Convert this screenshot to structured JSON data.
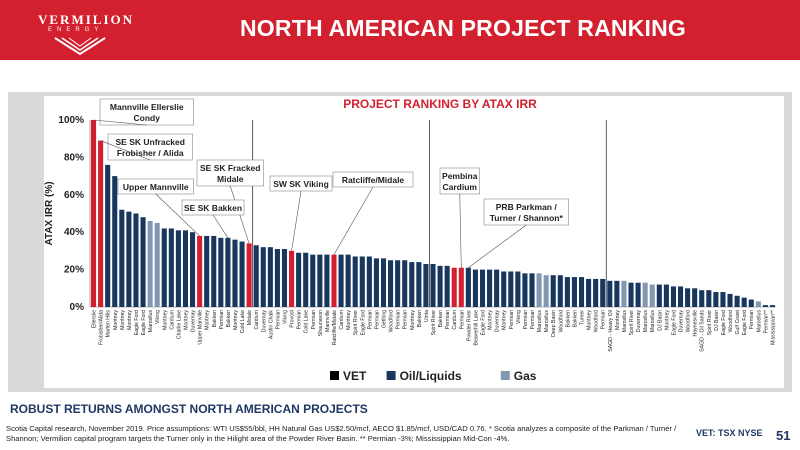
{
  "header": {
    "logo_line1": "VERMILION",
    "logo_line2": "ENERGY",
    "title": "NORTH AMERICAN PROJECT RANKING"
  },
  "colors": {
    "banner": "#d3202e",
    "vet": "#d3202e",
    "oil": "#17375e",
    "gas": "#8497b0"
  },
  "chart_data": {
    "type": "bar",
    "title": "PROJECT RANKING BY ATAX IRR",
    "ylabel": "ATAX IRR (%)",
    "xlabel": "",
    "ylim": [
      0,
      100
    ],
    "yticks": [
      "0%",
      "20%",
      "40%",
      "60%",
      "80%",
      "100%"
    ],
    "legend": {
      "position": "bottom",
      "entries": [
        {
          "key": "VET",
          "label": "VET"
        },
        {
          "key": "oil",
          "label": "Oil/Liquids"
        },
        {
          "key": "gas",
          "label": "Gas"
        }
      ]
    },
    "categories": [
      "Ellerslie",
      "Frobisher/Alida",
      "Marten Hills",
      "Montney",
      "Montney",
      "Montney",
      "Eagle Ford",
      "Eagle Ford",
      "Marcellus",
      "Viking",
      "Montney",
      "Cardium",
      "Charlie Lake",
      "Montney",
      "Duvernay",
      "Upper Manville",
      "Montney",
      "Bakken",
      "Permian",
      "Bakken",
      "Montney",
      "Cold Lake",
      "Midale",
      "Cardium",
      "Duvernay",
      "Austin Chalk",
      "Permian",
      "Viking",
      "Provost",
      "Permian",
      "Cold Lake",
      "Permian",
      "Shaunavon",
      "Mannville",
      "Ratcliffe/Midale",
      "Cardium",
      "Montney",
      "Spirit River",
      "Eagle Ford",
      "Permian",
      "Permian",
      "Gething",
      "Woodford",
      "Permian",
      "Permian",
      "Montney",
      "Bakken",
      "Uinta",
      "Spirit River",
      "Bakken",
      "Permian",
      "Cardium",
      "Permian",
      "Powder River",
      "Beaverhill Lake",
      "Eagle Ford",
      "Montney",
      "Duvernay",
      "Montney",
      "Permian",
      "Viking",
      "Permian",
      "Permian",
      "Marcellus",
      "Marcellus",
      "Deep Basin",
      "Woodford",
      "Bakken",
      "Bakken",
      "Turner",
      "Montney",
      "Woodford",
      "Permian",
      "SAGD - Heavy Oil",
      "Montney",
      "Marcellus",
      "Spirit River",
      "Duvernay",
      "Marcellus",
      "Marcellus",
      "DJ Basin",
      "Montney",
      "Eagle Ford",
      "Duvernay",
      "Woodford",
      "Haynesville",
      "SAGD - Oil Sands",
      "Spirit River",
      "DJ Basin",
      "Eagle Ford",
      "Woodford",
      "Gulf Coast",
      "Eagle Ford",
      "Permian",
      "Marcellus",
      "Permian**",
      "Mississippian**"
    ],
    "values": [
      100,
      89,
      76,
      70,
      52,
      51,
      50,
      48,
      46,
      45,
      42,
      42,
      41,
      41,
      40,
      38,
      38,
      38,
      37,
      37,
      36,
      35,
      34,
      33,
      32,
      32,
      31,
      31,
      30,
      29,
      29,
      28,
      28,
      28,
      28,
      28,
      28,
      27,
      27,
      27,
      26,
      26,
      25,
      25,
      25,
      24,
      24,
      23,
      23,
      22,
      22,
      21,
      21,
      21,
      20,
      20,
      20,
      20,
      19,
      19,
      19,
      18,
      18,
      18,
      17,
      17,
      17,
      16,
      16,
      16,
      15,
      15,
      15,
      14,
      14,
      14,
      13,
      13,
      13,
      12,
      12,
      12,
      11,
      11,
      10,
      10,
      9,
      9,
      8,
      8,
      7,
      6,
      5,
      4,
      3,
      1,
      1
    ],
    "types": [
      "vet",
      "vet",
      "oil",
      "oil",
      "oil",
      "oil",
      "oil",
      "oil",
      "gas",
      "gas",
      "oil",
      "oil",
      "oil",
      "oil",
      "oil",
      "vet",
      "oil",
      "oil",
      "oil",
      "oil",
      "oil",
      "oil",
      "vet",
      "oil",
      "oil",
      "oil",
      "oil",
      "oil",
      "vet",
      "oil",
      "oil",
      "oil",
      "oil",
      "oil",
      "vet",
      "oil",
      "oil",
      "oil",
      "oil",
      "oil",
      "oil",
      "oil",
      "oil",
      "oil",
      "oil",
      "oil",
      "oil",
      "oil",
      "oil",
      "oil",
      "oil",
      "vet",
      "vet",
      "oil",
      "oil",
      "oil",
      "oil",
      "oil",
      "oil",
      "oil",
      "oil",
      "oil",
      "oil",
      "gas",
      "gas",
      "oil",
      "oil",
      "oil",
      "oil",
      "oil",
      "oil",
      "oil",
      "oil",
      "oil",
      "oil",
      "gas",
      "oil",
      "oil",
      "gas",
      "gas",
      "oil",
      "oil",
      "oil",
      "oil",
      "oil",
      "oil",
      "oil",
      "oil",
      "oil",
      "oil",
      "oil",
      "oil",
      "oil",
      "oil",
      "gas",
      "oil",
      "oil"
    ],
    "dividers_after_index": [
      22,
      47,
      72
    ],
    "annotations": [
      {
        "index": 0,
        "lines": [
          "Mannville Ellerslie",
          "Condy"
        ]
      },
      {
        "index": 1,
        "lines": [
          "SE SK Unfracked",
          "Frobisher / Alida"
        ]
      },
      {
        "index": 15,
        "lines": [
          "Upper Mannville"
        ]
      },
      {
        "index": 22,
        "lines": [
          "SE SK Fracked",
          "Midale"
        ]
      },
      {
        "index": 19,
        "lines": [
          "SE SK Bakken"
        ]
      },
      {
        "index": 28,
        "lines": [
          "SW SK Viking"
        ]
      },
      {
        "index": 34,
        "lines": [
          "Ratcliffe/Midale"
        ]
      },
      {
        "index": 52,
        "lines": [
          "Pembina",
          "Cardium"
        ]
      },
      {
        "index": 53,
        "lines": [
          "PRB Parkman /",
          "Turner / Shannon*"
        ]
      }
    ]
  },
  "footer": {
    "subheading": "ROBUST RETURNS AMONGST NORTH AMERICAN PROJECTS",
    "footnote": "Scotia Capital research, November 2019.  Price assumptions:  WTI US$55/bbl, HH Natural Gas US$2.50/mcf, AECO $1.85/mcf, USD/CAD 0.76.  * Scotia analyzes a composite of the Parkman / Turner / Shannon; Vermilion capital program targets the Turner only in the Hilight area of the Powder River Basin.  ** Permian -3%; Mississippian Mid-Con -4%.",
    "exchange": "VET: TSX  NYSE",
    "page_number": "51"
  }
}
